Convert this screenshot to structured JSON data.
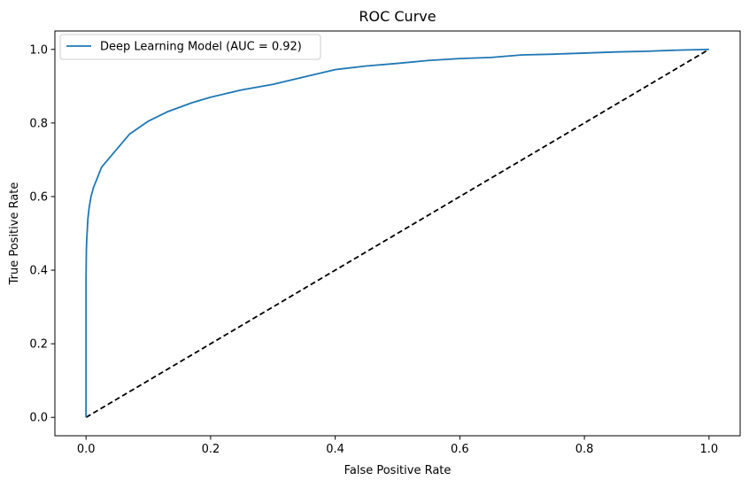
{
  "chart_data": {
    "type": "line",
    "title": "ROC Curve",
    "xlabel": "False Positive Rate",
    "ylabel": "True Positive Rate",
    "xlim": [
      -0.05,
      1.05
    ],
    "ylim": [
      -0.05,
      1.05
    ],
    "xticks": [
      0.0,
      0.2,
      0.4,
      0.6,
      0.8,
      1.0
    ],
    "yticks": [
      0.0,
      0.2,
      0.4,
      0.6,
      0.8,
      1.0
    ],
    "xtick_labels": [
      "0.0",
      "0.2",
      "0.4",
      "0.6",
      "0.8",
      "1.0"
    ],
    "ytick_labels": [
      "0.0",
      "0.2",
      "0.4",
      "0.6",
      "0.8",
      "1.0"
    ],
    "grid": false,
    "legend_position": "top-left",
    "series": [
      {
        "name": "Deep Learning Model (AUC = 0.92)",
        "color": "#1f77b4",
        "style": "solid",
        "x": [
          0.0,
          0.0,
          0.0,
          0.0005,
          0.001,
          0.002,
          0.003,
          0.005,
          0.008,
          0.012,
          0.018,
          0.025,
          0.035,
          0.05,
          0.07,
          0.1,
          0.13,
          0.17,
          0.2,
          0.25,
          0.3,
          0.35,
          0.4,
          0.45,
          0.5,
          0.55,
          0.6,
          0.65,
          0.7,
          0.75,
          0.8,
          0.85,
          0.9,
          0.95,
          1.0
        ],
        "y": [
          0.0,
          0.2,
          0.38,
          0.45,
          0.48,
          0.51,
          0.54,
          0.57,
          0.6,
          0.625,
          0.65,
          0.68,
          0.7,
          0.73,
          0.77,
          0.805,
          0.83,
          0.855,
          0.87,
          0.89,
          0.905,
          0.925,
          0.945,
          0.955,
          0.962,
          0.97,
          0.975,
          0.978,
          0.985,
          0.987,
          0.99,
          0.993,
          0.995,
          0.998,
          1.0
        ]
      },
      {
        "name": "",
        "color": "#000000",
        "style": "dashed",
        "x": [
          0.0,
          1.0
        ],
        "y": [
          0.0,
          1.0
        ]
      }
    ]
  }
}
